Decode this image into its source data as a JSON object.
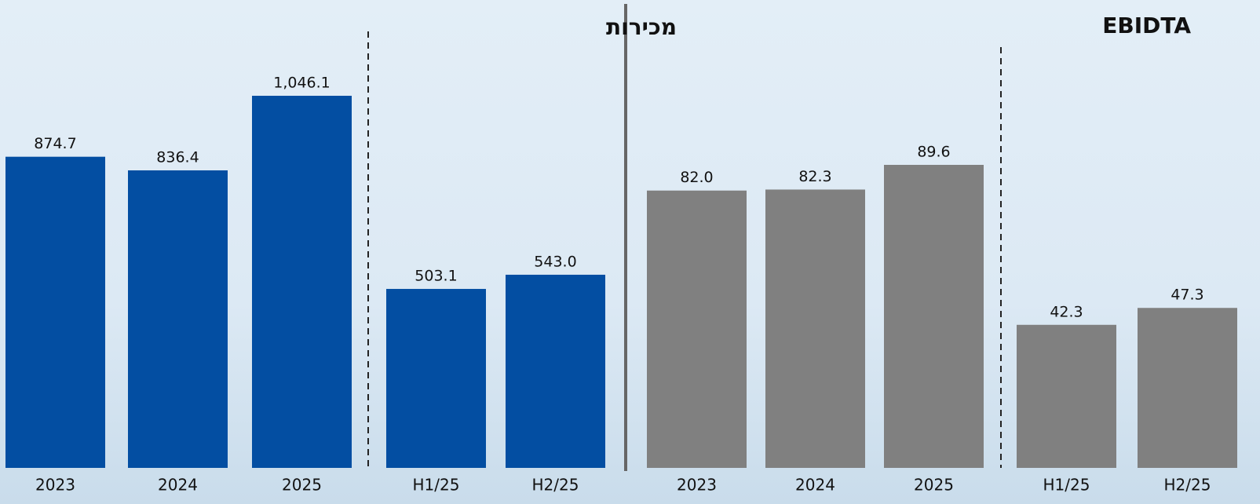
{
  "chart_data": [
    {
      "type": "bar",
      "title": "מכירות",
      "categories": [
        "2023",
        "2024",
        "2025",
        "H1/25",
        "H2/25"
      ],
      "values": [
        874.7,
        836.4,
        1046.1,
        503.1,
        543.0
      ],
      "value_labels": [
        "874.7",
        "836.4",
        "1,046.1",
        "503.1",
        "543.0"
      ],
      "color": "#034ea2"
    },
    {
      "type": "bar",
      "title": "EBIDTA",
      "categories": [
        "2023",
        "2024",
        "2025",
        "H1/25",
        "H2/25"
      ],
      "values": [
        82.0,
        82.3,
        89.6,
        42.3,
        47.3
      ],
      "value_labels": [
        "82.0",
        "82.3",
        "89.6",
        "42.3",
        "47.3"
      ],
      "color": "#808080"
    }
  ]
}
